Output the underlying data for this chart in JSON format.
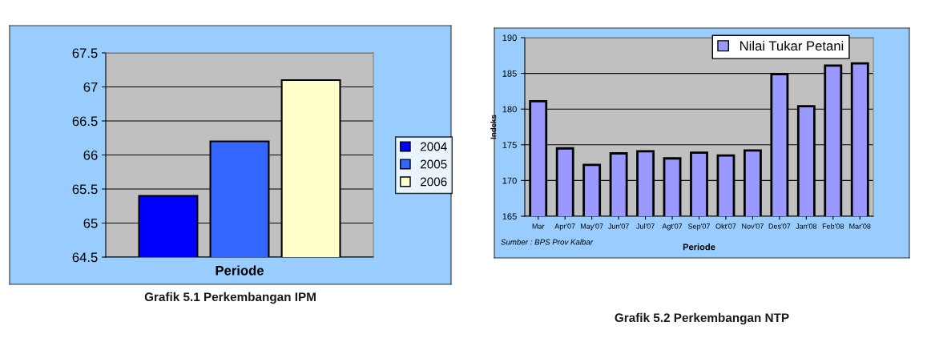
{
  "chart_data": [
    {
      "type": "bar",
      "title": "Grafik 5.1 Perkembangan IPM",
      "xlabel": "Periode",
      "categories": [
        null
      ],
      "series": [
        {
          "name": "2004",
          "color": "#0000ff",
          "values": [
            65.4
          ]
        },
        {
          "name": "2005",
          "color": "#3366ff",
          "values": [
            66.2
          ]
        },
        {
          "name": "2006",
          "color": "#ffffcc",
          "values": [
            67.1
          ]
        }
      ],
      "ylim": [
        64.5,
        67.5
      ],
      "yticks": [
        64.5,
        65,
        65.5,
        66,
        66.5,
        67,
        67.5
      ],
      "grid": "y",
      "legend": "right"
    },
    {
      "type": "bar",
      "title": "Grafik 5.2 Perkembangan NTP",
      "xlabel": "Periode",
      "ylabel": "Indeks",
      "categories": [
        "Mar",
        "Apr'07",
        "May'07",
        "Jun'07",
        "Jul'07",
        "Agt'07",
        "Sep'07",
        "Okt'07",
        "Nov'07",
        "Des'07",
        "Jan'08",
        "Feb'08",
        "Mar'08"
      ],
      "series": [
        {
          "name": "Nilai Tukar Petani",
          "color": "#9999ff",
          "values": [
            181.1,
            174.5,
            172.2,
            173.8,
            174.1,
            173.1,
            173.9,
            173.5,
            174.2,
            184.9,
            180.4,
            186.1,
            186.4
          ]
        }
      ],
      "ylim": [
        165,
        190
      ],
      "yticks": [
        165,
        170,
        175,
        180,
        185,
        190
      ],
      "grid": "y",
      "legend": "top right",
      "annotations": [
        "Sumber : BPS Prov Kalbar"
      ]
    }
  ]
}
